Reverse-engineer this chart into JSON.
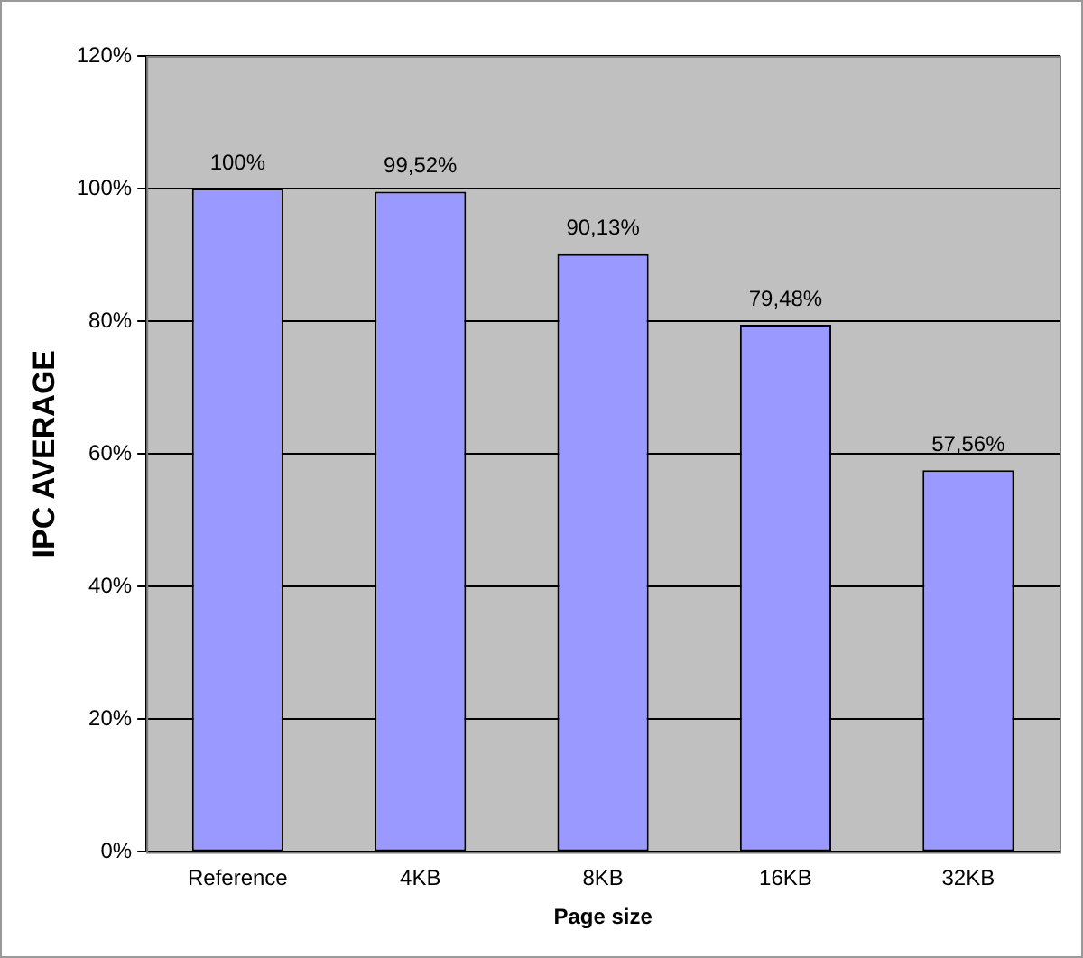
{
  "chart_data": {
    "type": "bar",
    "xlabel": "Page size",
    "ylabel": "IPC AVERAGE",
    "categories": [
      "Reference",
      "4KB",
      "8KB",
      "16KB",
      "32KB"
    ],
    "values": [
      100,
      99.52,
      90.13,
      79.48,
      57.56
    ],
    "color": "#9999ff",
    "value_labels": [
      "100%",
      "99,52%",
      "90,13%",
      "79,48%",
      "57,56%"
    ],
    "ylim": [
      0,
      120
    ],
    "yticks": [
      {
        "value": 0,
        "label": "0%"
      },
      {
        "value": 20,
        "label": "20%"
      },
      {
        "value": 40,
        "label": "40%"
      },
      {
        "value": 60,
        "label": "60%"
      },
      {
        "value": 80,
        "label": "80%"
      },
      {
        "value": 100,
        "label": "100%"
      },
      {
        "value": 120,
        "label": "120%"
      }
    ],
    "grid": "y",
    "legend": false
  }
}
